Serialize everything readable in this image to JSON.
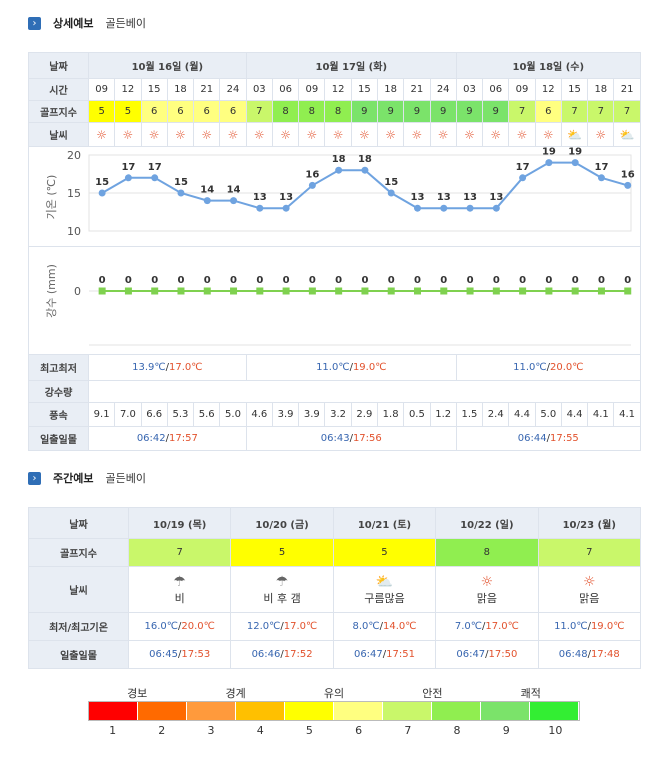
{
  "detail": {
    "section_title": "상세예보",
    "location": "골든베이",
    "labels": {
      "date": "날짜",
      "time": "시간",
      "golf": "골프지수",
      "weather": "날씨",
      "temp_axis": "기온 (℃)",
      "rain_axis": "강수 (mm)",
      "minmax": "최고최저",
      "rain": "강수량",
      "wind": "풍속",
      "sun": "일출일몰"
    },
    "days": [
      {
        "label": "10월 16일 (월)",
        "min": "13.9℃",
        "max": "17.0℃",
        "sunrise": "06:42",
        "sunset": "17:57"
      },
      {
        "label": "10월 17일 (화)",
        "min": "11.0℃",
        "max": "19.0℃",
        "sunrise": "06:43",
        "sunset": "17:56"
      },
      {
        "label": "10월 18일 (수)",
        "min": "11.0℃",
        "max": "20.0℃",
        "sunrise": "06:44",
        "sunset": "17:55"
      }
    ],
    "times": [
      "09",
      "12",
      "15",
      "18",
      "21",
      "24",
      "03",
      "06",
      "09",
      "12",
      "15",
      "18",
      "21",
      "24",
      "03",
      "06",
      "09",
      "12",
      "15",
      "18",
      "21"
    ],
    "golf": [
      5,
      5,
      6,
      6,
      6,
      6,
      7,
      8,
      8,
      8,
      9,
      9,
      9,
      9,
      9,
      9,
      7,
      6,
      7,
      7,
      7
    ],
    "weather_icons": [
      "sun",
      "sun",
      "sun",
      "sun",
      "sun",
      "sun",
      "sun",
      "sun",
      "sun",
      "sun",
      "sun",
      "sun",
      "sun",
      "sun",
      "sun",
      "sun",
      "sun",
      "sun",
      "partly-cloudy",
      "sun",
      "partly-cloudy"
    ],
    "wind": [
      "9.1",
      "7.0",
      "6.6",
      "5.3",
      "5.6",
      "5.0",
      "4.6",
      "3.9",
      "3.9",
      "3.2",
      "2.9",
      "1.8",
      "0.5",
      "1.2",
      "1.5",
      "2.4",
      "4.4",
      "5.0",
      "4.4",
      "4.1",
      "4.1"
    ]
  },
  "chart_data": [
    {
      "type": "line",
      "x": [
        "09",
        "12",
        "15",
        "18",
        "21",
        "24",
        "03",
        "06",
        "09",
        "12",
        "15",
        "18",
        "21",
        "24",
        "03",
        "06",
        "09",
        "12",
        "15",
        "18",
        "21"
      ],
      "values": [
        15,
        17,
        17,
        15,
        14,
        14,
        13,
        13,
        16,
        18,
        18,
        15,
        13,
        13,
        13,
        13,
        17,
        19,
        19,
        17,
        16
      ],
      "ylabel": "기온 (℃)",
      "yticks": [
        10,
        15,
        20
      ],
      "ylim": [
        10,
        20
      ],
      "grid": true
    },
    {
      "type": "line",
      "x": [
        "09",
        "12",
        "15",
        "18",
        "21",
        "24",
        "03",
        "06",
        "09",
        "12",
        "15",
        "18",
        "21",
        "24",
        "03",
        "06",
        "09",
        "12",
        "15",
        "18",
        "21"
      ],
      "values": [
        0,
        0,
        0,
        0,
        0,
        0,
        0,
        0,
        0,
        0,
        0,
        0,
        0,
        0,
        0,
        0,
        0,
        0,
        0,
        0,
        0
      ],
      "ylabel": "강수 (mm)",
      "yticks": [
        0
      ],
      "grid": true
    }
  ],
  "weekly": {
    "section_title": "주간예보",
    "location": "골든베이",
    "labels": {
      "date": "날짜",
      "golf": "골프지수",
      "weather": "날씨",
      "minmax": "최저/최고기온",
      "sun": "일출일몰"
    },
    "days": [
      {
        "date": "10/19 (목)",
        "golf": "7",
        "icon": "rain",
        "weather": "비",
        "min": "16.0℃",
        "max": "20.0℃",
        "sunrise": "06:45",
        "sunset": "17:53"
      },
      {
        "date": "10/20 (금)",
        "golf": "5",
        "icon": "rain-then-clear",
        "weather": "비 후 갬",
        "min": "12.0℃",
        "max": "17.0℃",
        "sunrise": "06:46",
        "sunset": "17:52"
      },
      {
        "date": "10/21 (토)",
        "golf": "5",
        "icon": "partly-cloudy",
        "weather": "구름많음",
        "min": "8.0℃",
        "max": "14.0℃",
        "sunrise": "06:47",
        "sunset": "17:51"
      },
      {
        "date": "10/22 (일)",
        "golf": "8",
        "icon": "sun",
        "weather": "맑음",
        "min": "7.0℃",
        "max": "17.0℃",
        "sunrise": "06:47",
        "sunset": "17:50"
      },
      {
        "date": "10/23 (월)",
        "golf": "7",
        "icon": "sun",
        "weather": "맑음",
        "min": "11.0℃",
        "max": "19.0℃",
        "sunrise": "06:48",
        "sunset": "17:48"
      }
    ]
  },
  "legend": {
    "labels": [
      "경보",
      "경계",
      "유의",
      "안전",
      "쾌적"
    ],
    "numbers": [
      "1",
      "2",
      "3",
      "4",
      "5",
      "6",
      "7",
      "8",
      "9",
      "10"
    ],
    "colors": {
      "1": "#ff0000",
      "2": "#ff6a00",
      "3": "#ff9a3c",
      "4": "#ffc000",
      "5": "#ffff00",
      "6": "#ffff80",
      "7": "#c9f76a",
      "8": "#90ee50",
      "9": "#7be36a",
      "10": "#33ee33"
    }
  }
}
